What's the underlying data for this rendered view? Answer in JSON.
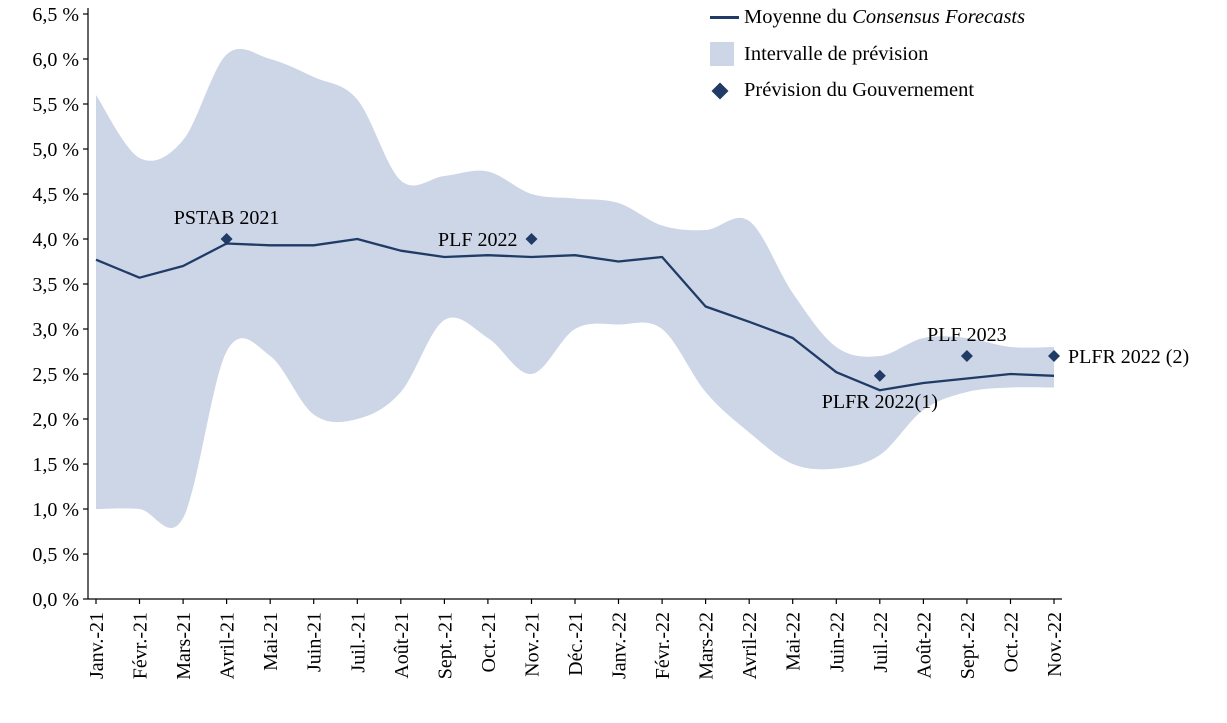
{
  "chart_data": {
    "type": "line",
    "title": "",
    "categories": [
      "Janv.-21",
      "Févr.-21",
      "Mars-21",
      "Avril-21",
      "Mai-21",
      "Juin-21",
      "Juil.-21",
      "Août-21",
      "Sept.-21",
      "Oct.-21",
      "Nov.-21",
      "Déc.-21",
      "Janv.-22",
      "Févr.-22",
      "Mars-22",
      "Avril-22",
      "Mai-22",
      "Juin-22",
      "Juil.-22",
      "Août-22",
      "Sept.-22",
      "Oct.-22",
      "Nov.-22"
    ],
    "ylim": [
      0,
      6.5
    ],
    "ytick_step": 0.5,
    "yticks": [
      "0,0 %",
      "0,5 %",
      "1,0 %",
      "1,5 %",
      "2,0 %",
      "2,5 %",
      "3,0 %",
      "3,5 %",
      "4,0 %",
      "4,5 %",
      "5,0 %",
      "5,5 %",
      "6,0 %",
      "6,5 %"
    ],
    "series": [
      {
        "name": "Moyenne du Consensus Forecasts",
        "values": [
          3.77,
          3.57,
          3.7,
          3.95,
          3.93,
          3.93,
          4.0,
          3.87,
          3.8,
          3.82,
          3.8,
          3.82,
          3.75,
          3.8,
          3.25,
          3.08,
          2.9,
          2.52,
          2.32,
          2.4,
          2.45,
          2.5,
          2.48
        ]
      }
    ],
    "band": {
      "name": "Intervalle de prévision",
      "upper": [
        5.6,
        4.9,
        5.1,
        6.05,
        6.0,
        5.8,
        5.55,
        4.65,
        4.7,
        4.75,
        4.5,
        4.45,
        4.4,
        4.15,
        4.1,
        4.2,
        3.4,
        2.8,
        2.7,
        2.9,
        2.9,
        2.8,
        2.8
      ],
      "lower": [
        1.0,
        1.0,
        0.9,
        2.75,
        2.7,
        2.05,
        2.0,
        2.3,
        3.1,
        2.9,
        2.5,
        3.0,
        3.05,
        3.0,
        2.3,
        1.85,
        1.5,
        1.45,
        1.6,
        2.1,
        2.3,
        2.35,
        2.35
      ]
    },
    "government_forecasts": [
      {
        "category": "Avril-21",
        "value": 4.0,
        "label": "PSTAB 2021",
        "label_position": "above"
      },
      {
        "category": "Nov.-21",
        "value": 4.0,
        "label": "PLF 2022",
        "label_position": "left"
      },
      {
        "category": "Juil.-22",
        "value": 2.48,
        "label": "PLFR 2022(1)",
        "label_position": "below"
      },
      {
        "category": "Sept.-22",
        "value": 2.7,
        "label": "PLF 2023",
        "label_position": "above"
      },
      {
        "category": "Nov.-22",
        "value": 2.7,
        "label": "PLFR 2022 (2)",
        "label_position": "right"
      }
    ],
    "legend": {
      "consensus_prefix": "Moyenne du ",
      "consensus_italic": "Consensus Forecasts",
      "interval_label": "Intervalle de prévision",
      "government_label": "Prévision du Gouvernement"
    },
    "colors": {
      "line": "#1f3b66",
      "band": "#cdd6e7",
      "marker": "#1f3b66",
      "axis": "#000000",
      "text": "#000000"
    }
  }
}
